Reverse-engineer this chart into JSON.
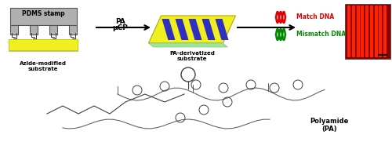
{
  "title": "",
  "bg_color": "#ffffff",
  "pdms_label": "PDMS stamp",
  "azide_label": "Azide-modified\nsubstrate",
  "pa_arrow_label1": "PA",
  "pa_arrow_label2": "μCP",
  "pa_deriv_label": "PA-derivatized\nsubstrate",
  "match_label": "Match DNA",
  "mismatch_label": "Mismatch DNA",
  "polyamide_label": "Polyamide\n(PA)",
  "stamp_color": "#b0b0b0",
  "substrate_yellow": "#f0f020",
  "substrate_green_edge": "#90ee90",
  "pa_stripe_blue": "#3030c0",
  "match_color": "#dd0000",
  "mismatch_color": "#008800",
  "arrow_color": "#000000",
  "structure_color": "#404040",
  "fluorescence_red": "#cc2200",
  "fluorescence_stripe": "#880000"
}
